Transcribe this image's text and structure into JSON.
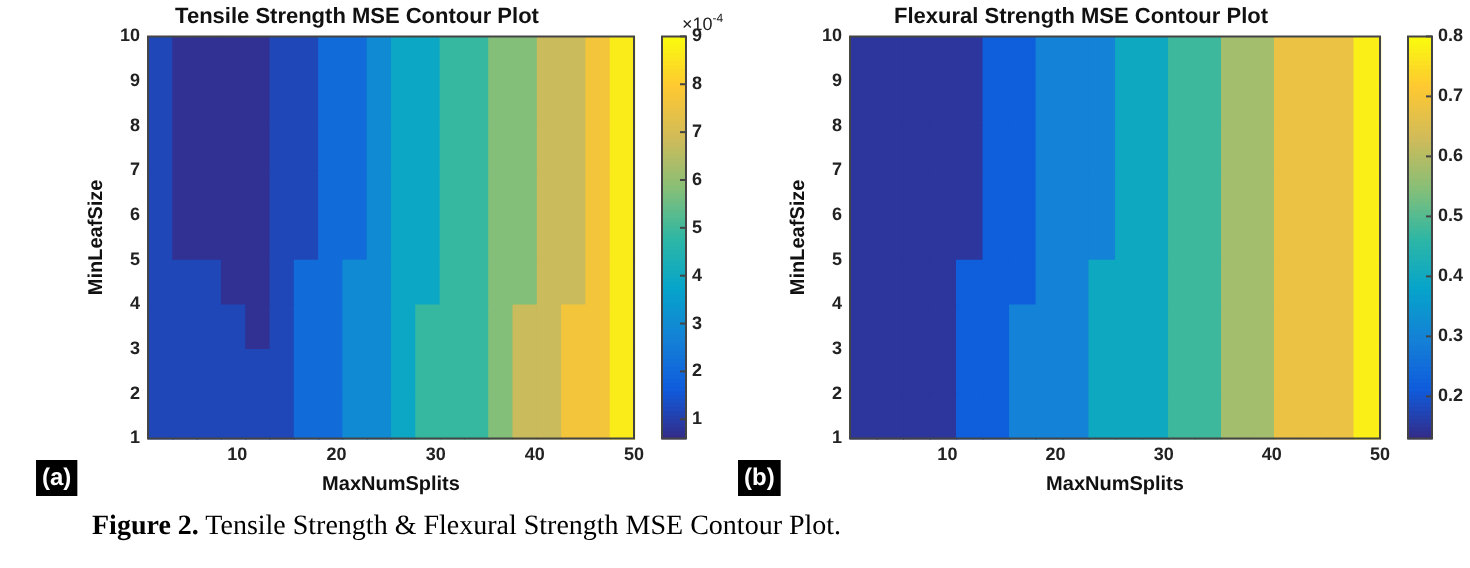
{
  "chart_data": [
    {
      "type": "heatmap",
      "title": "Tensile Strength MSE Contour Plot",
      "xlabel": "MaxNumSplits",
      "ylabel": "MinLeafSize",
      "clabel": "×10$^{-4}$",
      "xlim": [
        1,
        50
      ],
      "xticks": [
        10,
        20,
        30,
        40,
        50
      ],
      "ylim": [
        1,
        10
      ],
      "yticks": [
        1,
        2,
        3,
        4,
        5,
        6,
        7,
        8,
        9,
        10
      ],
      "clim": [
        0.6,
        9
      ],
      "cticks": [
        1,
        2,
        3,
        4,
        5,
        6,
        7,
        8,
        9
      ],
      "grid": false,
      "annotations": [
        "(a)",
        "Figure 2. Tensile Strength & Flexural Strength MSE Contour Plot."
      ],
      "cells": [
        [
          1.2,
          0.75,
          0.75,
          0.75,
          0.75,
          1.2,
          1.2,
          2.1,
          2.1,
          3.0,
          3.9,
          3.9,
          4.9,
          4.9,
          5.8,
          5.8,
          6.8,
          6.8,
          7.7,
          8.7
        ],
        [
          1.2,
          0.75,
          0.75,
          0.75,
          0.75,
          1.2,
          1.2,
          2.1,
          2.1,
          3.0,
          3.9,
          3.9,
          4.9,
          4.9,
          5.8,
          5.8,
          6.8,
          6.8,
          7.7,
          8.7
        ],
        [
          1.2,
          0.75,
          0.75,
          0.75,
          0.75,
          1.2,
          1.2,
          2.1,
          2.1,
          3.0,
          3.9,
          3.9,
          4.9,
          4.9,
          5.8,
          5.8,
          6.8,
          6.8,
          7.7,
          8.7
        ],
        [
          1.2,
          0.75,
          0.75,
          0.75,
          0.75,
          1.2,
          1.2,
          2.1,
          2.1,
          3.0,
          3.9,
          3.9,
          4.9,
          4.9,
          5.8,
          5.8,
          6.8,
          6.8,
          7.7,
          8.7
        ],
        [
          1.2,
          0.75,
          0.75,
          0.75,
          0.75,
          1.2,
          1.2,
          2.1,
          2.1,
          3.0,
          3.9,
          3.9,
          4.9,
          4.9,
          5.8,
          5.8,
          6.8,
          6.8,
          7.7,
          8.7
        ],
        [
          1.2,
          1.2,
          1.2,
          0.75,
          0.75,
          1.2,
          2.1,
          2.1,
          3.0,
          3.0,
          3.9,
          3.9,
          4.9,
          4.9,
          5.8,
          5.8,
          6.8,
          6.8,
          7.7,
          8.7
        ],
        [
          1.2,
          1.2,
          1.2,
          1.2,
          0.75,
          1.2,
          2.1,
          2.1,
          3.0,
          3.0,
          3.9,
          4.9,
          4.9,
          4.9,
          5.8,
          6.8,
          6.8,
          7.7,
          7.7,
          8.7
        ],
        [
          1.2,
          1.2,
          1.2,
          1.2,
          1.2,
          1.2,
          2.1,
          2.1,
          3.0,
          3.0,
          3.9,
          4.9,
          4.9,
          4.9,
          5.8,
          6.8,
          6.8,
          7.7,
          7.7,
          8.7
        ],
        [
          1.2,
          1.2,
          1.2,
          1.2,
          1.2,
          1.2,
          2.1,
          2.1,
          3.0,
          3.0,
          3.9,
          4.9,
          4.9,
          4.9,
          5.8,
          6.8,
          6.8,
          7.7,
          7.7,
          8.7
        ]
      ]
    },
    {
      "type": "heatmap",
      "title": "Flexural Strength MSE Contour Plot",
      "xlabel": "MaxNumSplits",
      "ylabel": "MinLeafSize",
      "xlim": [
        1,
        50
      ],
      "xticks": [
        10,
        20,
        30,
        40,
        50
      ],
      "ylim": [
        1,
        10
      ],
      "yticks": [
        1,
        2,
        3,
        4,
        5,
        6,
        7,
        8,
        9,
        10
      ],
      "clim": [
        0.13,
        0.8
      ],
      "cticks": [
        0.2,
        0.3,
        0.4,
        0.5,
        0.6,
        0.7,
        0.8
      ],
      "grid": false,
      "annotations": [
        "(b)"
      ],
      "cells": [
        [
          0.15,
          0.15,
          0.15,
          0.15,
          0.15,
          0.22,
          0.22,
          0.3,
          0.3,
          0.3,
          0.4,
          0.4,
          0.48,
          0.48,
          0.58,
          0.58,
          0.68,
          0.68,
          0.68,
          0.78
        ],
        [
          0.15,
          0.15,
          0.15,
          0.15,
          0.15,
          0.22,
          0.22,
          0.3,
          0.3,
          0.3,
          0.4,
          0.4,
          0.48,
          0.48,
          0.58,
          0.58,
          0.68,
          0.68,
          0.68,
          0.78
        ],
        [
          0.15,
          0.15,
          0.15,
          0.15,
          0.15,
          0.22,
          0.22,
          0.3,
          0.3,
          0.3,
          0.4,
          0.4,
          0.48,
          0.48,
          0.58,
          0.58,
          0.68,
          0.68,
          0.68,
          0.78
        ],
        [
          0.15,
          0.15,
          0.15,
          0.15,
          0.15,
          0.22,
          0.22,
          0.3,
          0.3,
          0.3,
          0.4,
          0.4,
          0.48,
          0.48,
          0.58,
          0.58,
          0.68,
          0.68,
          0.68,
          0.78
        ],
        [
          0.15,
          0.15,
          0.15,
          0.15,
          0.15,
          0.22,
          0.22,
          0.3,
          0.3,
          0.3,
          0.4,
          0.4,
          0.48,
          0.48,
          0.58,
          0.58,
          0.68,
          0.68,
          0.68,
          0.78
        ],
        [
          0.15,
          0.15,
          0.15,
          0.15,
          0.22,
          0.22,
          0.22,
          0.3,
          0.3,
          0.4,
          0.4,
          0.4,
          0.48,
          0.48,
          0.58,
          0.58,
          0.68,
          0.68,
          0.68,
          0.78
        ],
        [
          0.15,
          0.15,
          0.15,
          0.15,
          0.22,
          0.22,
          0.3,
          0.3,
          0.3,
          0.4,
          0.4,
          0.4,
          0.48,
          0.48,
          0.58,
          0.58,
          0.68,
          0.68,
          0.68,
          0.78
        ],
        [
          0.15,
          0.15,
          0.15,
          0.15,
          0.22,
          0.22,
          0.3,
          0.3,
          0.3,
          0.4,
          0.4,
          0.4,
          0.48,
          0.48,
          0.58,
          0.58,
          0.68,
          0.68,
          0.68,
          0.78
        ],
        [
          0.15,
          0.15,
          0.15,
          0.15,
          0.22,
          0.22,
          0.3,
          0.3,
          0.3,
          0.4,
          0.4,
          0.4,
          0.48,
          0.48,
          0.58,
          0.58,
          0.68,
          0.68,
          0.68,
          0.78
        ]
      ]
    }
  ]
}
